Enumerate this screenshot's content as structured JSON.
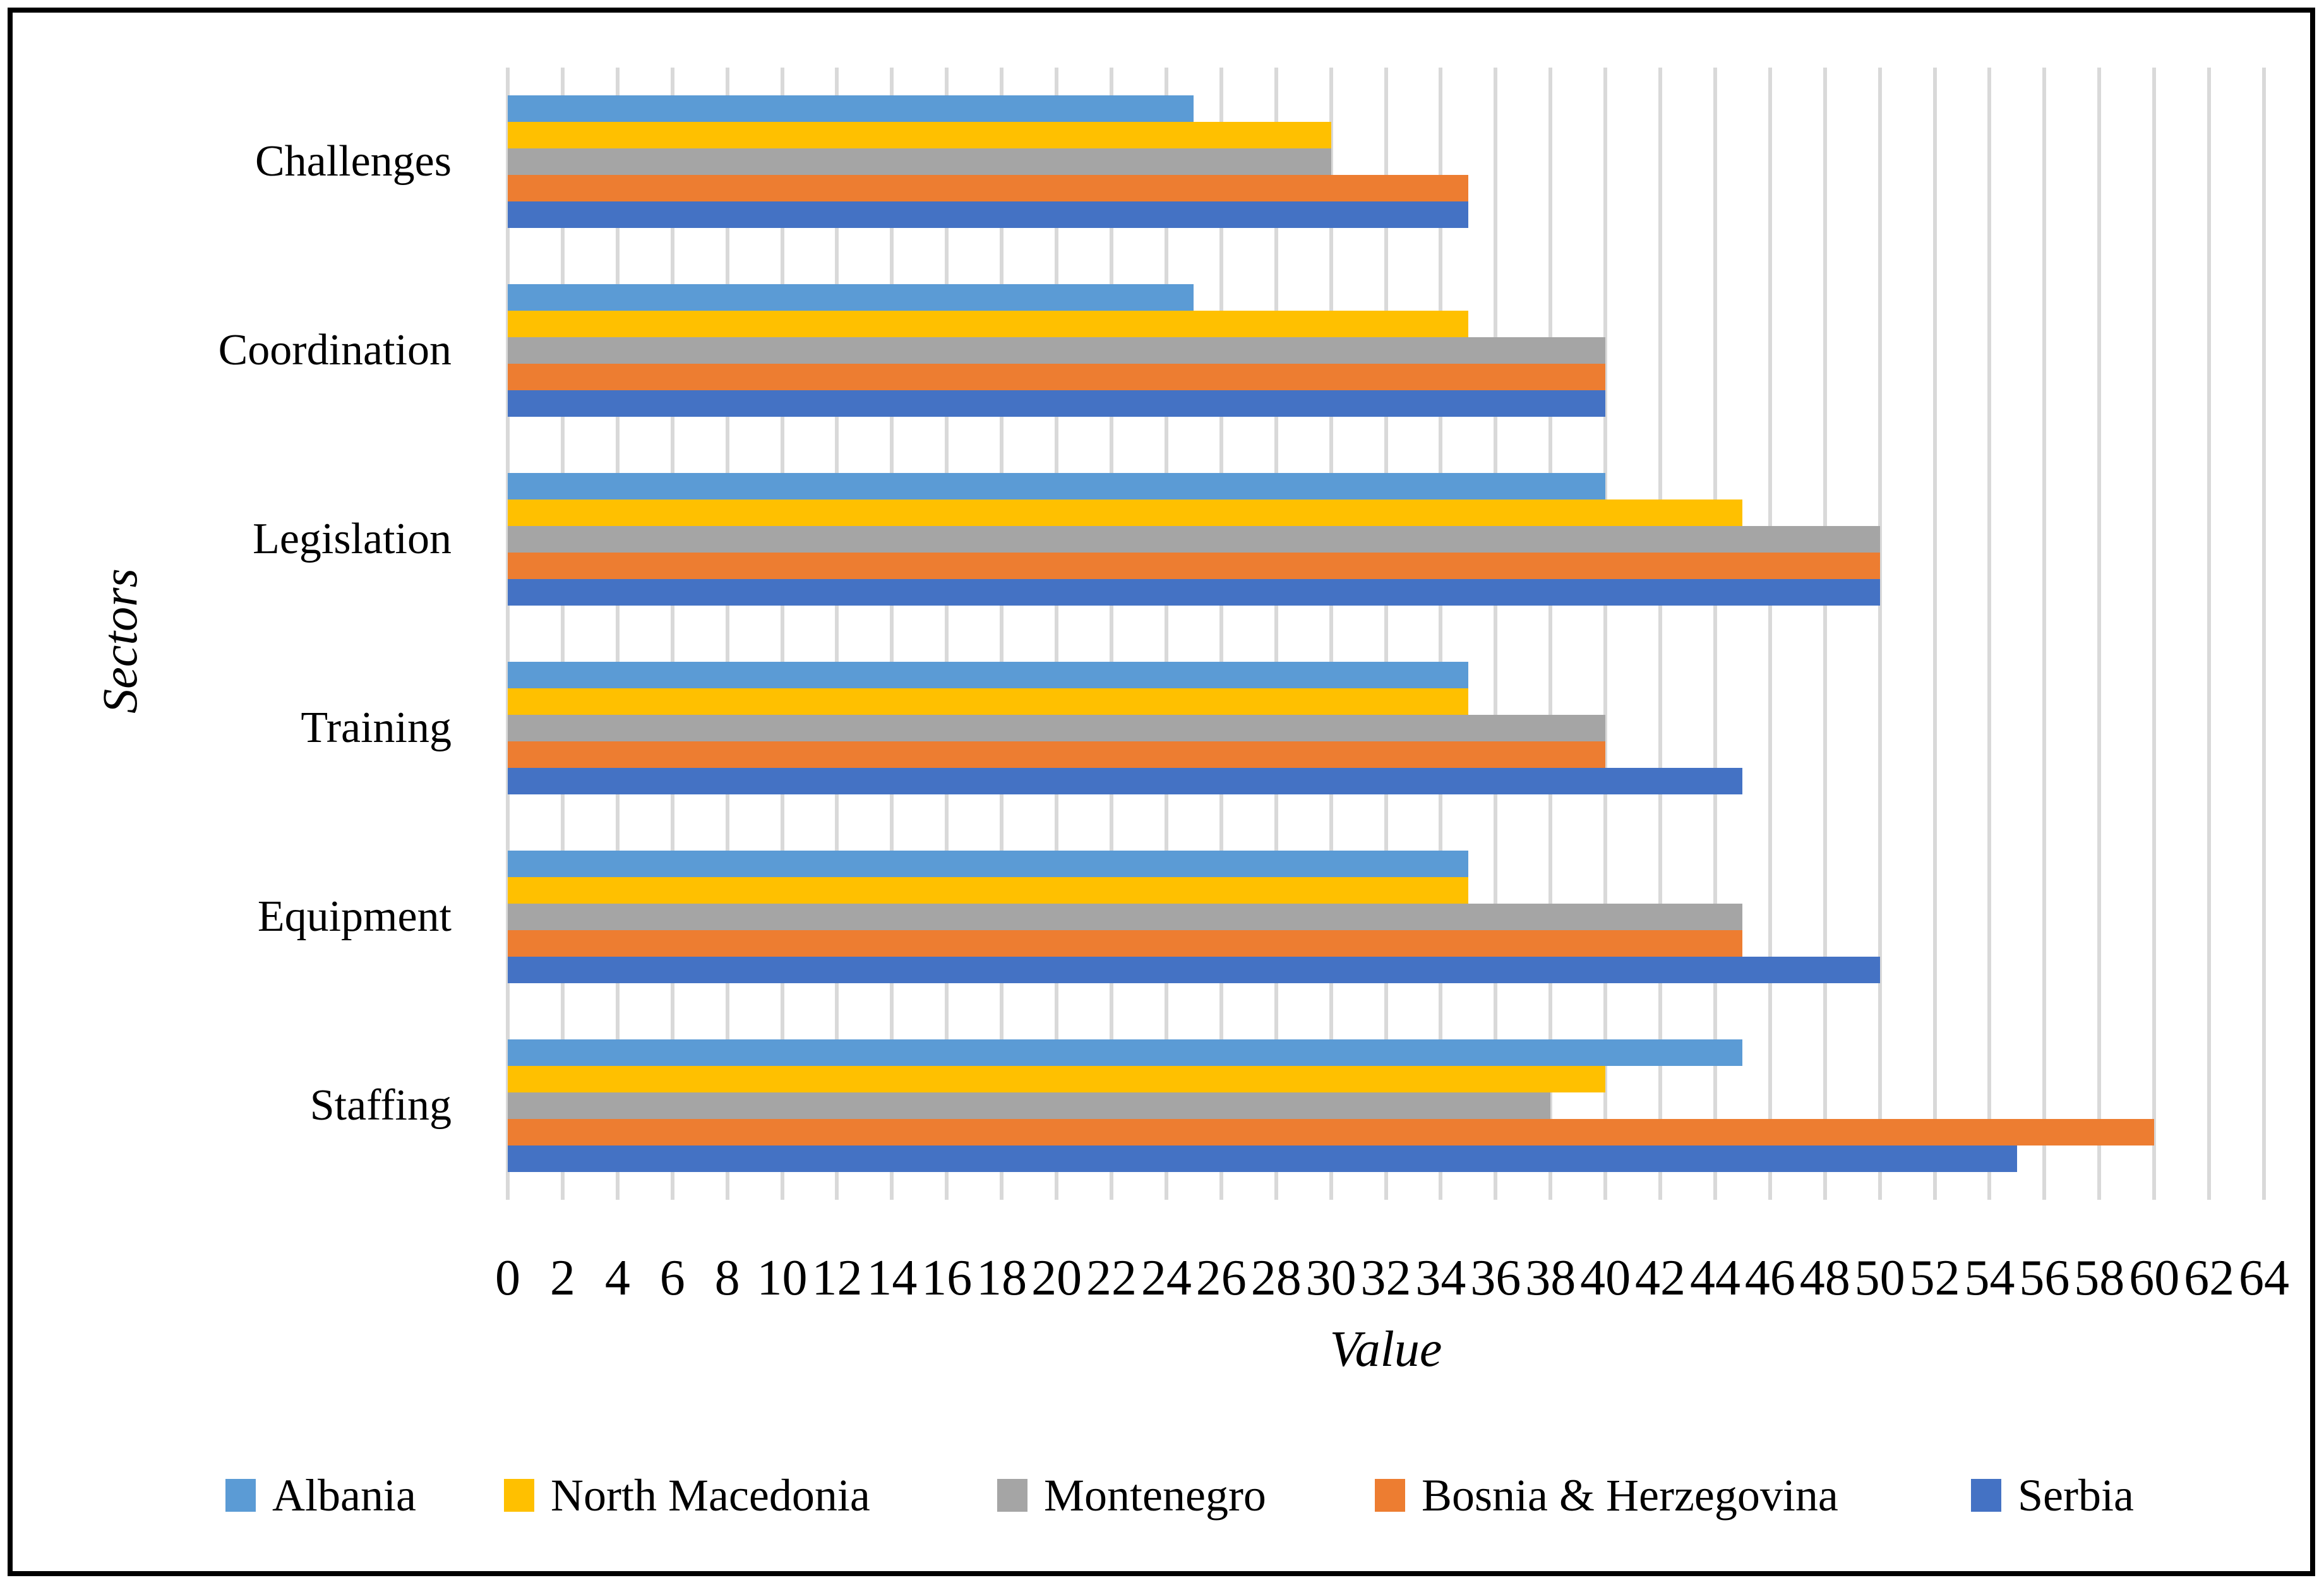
{
  "chart_data": {
    "type": "bar",
    "orientation": "horizontal",
    "title": "",
    "xlabel": "Value",
    "ylabel": "Sectors",
    "categories": [
      "Challenges",
      "Coordination",
      "Legislation",
      "Training",
      "Equipment",
      "Staffing"
    ],
    "series": [
      {
        "name": "Albania",
        "color": "#5B9BD5",
        "values": [
          25,
          25,
          40,
          35,
          35,
          45
        ]
      },
      {
        "name": "North Macedonia",
        "color": "#FFC000",
        "values": [
          30,
          35,
          45,
          35,
          35,
          40
        ]
      },
      {
        "name": "Montenegro",
        "color": "#A5A5A5",
        "values": [
          30,
          40,
          50,
          40,
          45,
          38
        ]
      },
      {
        "name": "Bosnia & Herzegovina",
        "color": "#ED7D31",
        "values": [
          35,
          40,
          50,
          40,
          45,
          60
        ]
      },
      {
        "name": "Serbia",
        "color": "#4472C4",
        "values": [
          35,
          40,
          50,
          45,
          50,
          55
        ]
      }
    ],
    "xlim": [
      0,
      64
    ],
    "xtick_step": 2,
    "xticks": [
      0,
      2,
      4,
      6,
      8,
      10,
      12,
      14,
      16,
      18,
      20,
      22,
      24,
      26,
      28,
      30,
      32,
      34,
      36,
      38,
      40,
      42,
      44,
      46,
      48,
      50,
      52,
      54,
      56,
      58,
      60,
      62,
      64
    ],
    "grid": true,
    "gridline_color": "#D9D9D9",
    "legend_position": "bottom",
    "legend_labels": [
      "Albania",
      "North Macedonia",
      "Montenegro",
      "Bosnia & Herzegovina",
      "Serbia"
    ]
  }
}
